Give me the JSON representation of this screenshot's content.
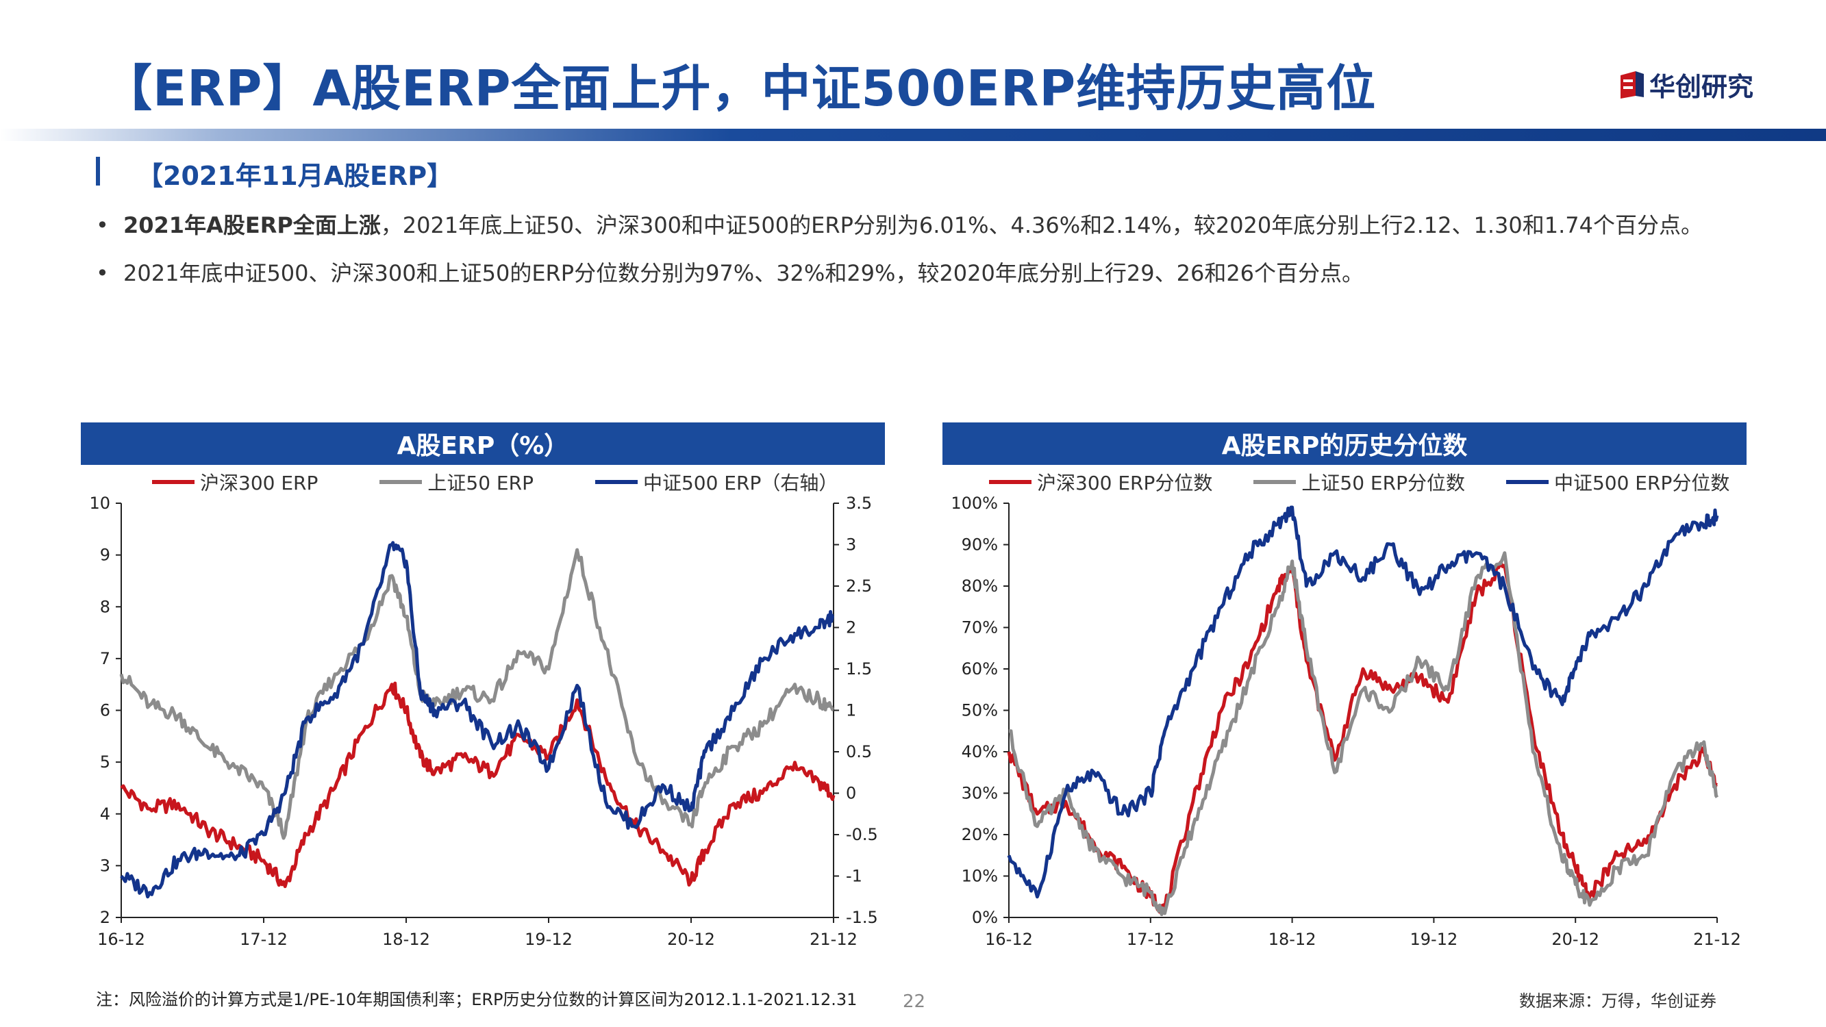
{
  "page": {
    "title": "【ERP】A股ERP全面上升，中证500ERP维持历史高位",
    "logo_text": "华创研究",
    "section_title": "【2021年11月A股ERP】",
    "bullet1_bold": "2021年A股ERP全面上涨",
    "bullet1_rest": "，2021年底上证50、沪深300和中证500的ERP分别为6.01%、4.36%和2.14%，较2020年底分别上行2.12、1.30和1.74个百分点。",
    "bullet2": "2021年底中证500、沪深300和上证50的ERP分位数分别为97%、32%和29%，较2020年底分别上行29、26和26个百分点。",
    "note": "注：风险溢价的计算方式是1/PE-10年期国债利率；ERP历史分位数的计算区间为2012.1.1-2021.12.31",
    "page_number": "22",
    "source": "数据来源：万得，华创证券",
    "colors": {
      "brand": "#1a4b9c",
      "red": "#c8161d",
      "gray": "#8c8c8c",
      "navy": "#13348c"
    }
  },
  "chart_data": [
    {
      "type": "line",
      "title": "A股ERP（%）",
      "x_ticks": [
        "16-12",
        "17-12",
        "18-12",
        "19-12",
        "20-12",
        "21-12"
      ],
      "ylim": [
        2,
        10
      ],
      "y_ticks": [
        "2",
        "3",
        "4",
        "5",
        "6",
        "7",
        "8",
        "9",
        "10"
      ],
      "y2lim": [
        -1.5,
        3.5
      ],
      "y2_ticks": [
        "-1.5",
        "-1",
        "-0.5",
        "0",
        "0.5",
        "1",
        "1.5",
        "2",
        "2.5",
        "3",
        "3.5"
      ],
      "series": [
        {
          "name": "沪深300 ERP",
          "color": "#c8161d",
          "axis": "left",
          "x": [
            0,
            0.2,
            0.4,
            0.6,
            0.8,
            1.0,
            1.15,
            1.3,
            1.5,
            1.7,
            1.9,
            2.0,
            2.1,
            2.2,
            2.4,
            2.6,
            2.8,
            3.0,
            3.2,
            3.4,
            3.6,
            3.8,
            4.0,
            4.1,
            4.3,
            4.5,
            4.7,
            4.9,
            5.0
          ],
          "values": [
            4.5,
            4.1,
            4.2,
            3.7,
            3.4,
            3.1,
            2.6,
            3.6,
            4.5,
            5.6,
            6.5,
            6.0,
            5.1,
            4.8,
            5.1,
            4.8,
            5.5,
            5.1,
            6.2,
            4.7,
            3.8,
            3.3,
            2.7,
            3.3,
            4.2,
            4.4,
            4.9,
            4.6,
            4.36
          ]
        },
        {
          "name": "上证50 ERP",
          "color": "#8c8c8c",
          "axis": "left",
          "x": [
            0,
            0.2,
            0.4,
            0.6,
            0.8,
            1.0,
            1.15,
            1.3,
            1.5,
            1.7,
            1.9,
            2.0,
            2.1,
            2.2,
            2.4,
            2.6,
            2.8,
            3.0,
            3.2,
            3.4,
            3.6,
            3.8,
            4.0,
            4.1,
            4.3,
            4.5,
            4.7,
            4.9,
            5.0
          ],
          "values": [
            6.7,
            6.1,
            5.9,
            5.3,
            4.9,
            4.5,
            3.6,
            5.8,
            6.7,
            7.3,
            8.6,
            7.8,
            6.3,
            6.1,
            6.4,
            6.2,
            7.1,
            6.8,
            9.1,
            7.2,
            5.2,
            4.2,
            3.8,
            4.6,
            5.3,
            5.7,
            6.4,
            6.2,
            6.01
          ]
        },
        {
          "name": "中证500 ERP（右轴）",
          "color": "#13348c",
          "axis": "right",
          "x": [
            0,
            0.2,
            0.4,
            0.6,
            0.8,
            1.0,
            1.15,
            1.3,
            1.5,
            1.7,
            1.9,
            2.0,
            2.1,
            2.2,
            2.4,
            2.6,
            2.8,
            3.0,
            3.2,
            3.4,
            3.6,
            3.8,
            4.0,
            4.1,
            4.3,
            4.5,
            4.7,
            4.9,
            5.0
          ],
          "values": [
            -1.0,
            -1.2,
            -0.8,
            -0.7,
            -0.8,
            -0.5,
            0.0,
            0.9,
            1.2,
            1.8,
            3.0,
            2.8,
            1.2,
            1.0,
            1.1,
            0.6,
            0.8,
            0.3,
            1.3,
            -0.1,
            -0.4,
            0.1,
            -0.2,
            0.5,
            1.0,
            1.6,
            1.9,
            2.0,
            2.14
          ]
        }
      ]
    },
    {
      "type": "line",
      "title": "A股ERP的历史分位数",
      "x_ticks": [
        "16-12",
        "17-12",
        "18-12",
        "19-12",
        "20-12",
        "21-12"
      ],
      "ylim": [
        0,
        100
      ],
      "y_ticks": [
        "0%",
        "10%",
        "20%",
        "30%",
        "40%",
        "50%",
        "60%",
        "70%",
        "80%",
        "90%",
        "100%"
      ],
      "series": [
        {
          "name": "沪深300 ERP分位数",
          "color": "#c8161d",
          "x": [
            0,
            0.2,
            0.4,
            0.6,
            0.8,
            1.0,
            1.1,
            1.3,
            1.5,
            1.7,
            1.9,
            2.0,
            2.1,
            2.3,
            2.5,
            2.7,
            2.9,
            3.1,
            3.3,
            3.5,
            3.7,
            3.9,
            4.0,
            4.1,
            4.3,
            4.5,
            4.7,
            4.9,
            5.0
          ],
          "values": [
            40,
            25,
            28,
            18,
            12,
            5,
            2,
            28,
            50,
            62,
            80,
            84,
            62,
            38,
            60,
            55,
            58,
            52,
            78,
            85,
            45,
            20,
            12,
            5,
            15,
            18,
            32,
            40,
            32
          ]
        },
        {
          "name": "上证50 ERP分位数",
          "color": "#8c8c8c",
          "x": [
            0,
            0.2,
            0.4,
            0.6,
            0.8,
            1.0,
            1.1,
            1.3,
            1.5,
            1.7,
            1.9,
            2.0,
            2.1,
            2.3,
            2.5,
            2.7,
            2.9,
            3.1,
            3.3,
            3.5,
            3.7,
            3.9,
            4.0,
            4.1,
            4.3,
            4.5,
            4.7,
            4.9,
            5.0
          ],
          "values": [
            45,
            22,
            30,
            16,
            10,
            6,
            1,
            22,
            40,
            58,
            75,
            86,
            65,
            35,
            55,
            50,
            62,
            55,
            82,
            88,
            40,
            15,
            8,
            3,
            12,
            15,
            35,
            42,
            29
          ]
        },
        {
          "name": "中证500 ERP分位数",
          "color": "#13348c",
          "x": [
            0,
            0.2,
            0.4,
            0.6,
            0.8,
            1.0,
            1.1,
            1.3,
            1.5,
            1.7,
            1.9,
            2.0,
            2.1,
            2.3,
            2.5,
            2.7,
            2.9,
            3.1,
            3.3,
            3.5,
            3.7,
            3.9,
            4.0,
            4.1,
            4.3,
            4.5,
            4.7,
            4.9,
            5.0
          ],
          "values": [
            15,
            5,
            30,
            35,
            25,
            30,
            45,
            60,
            75,
            88,
            95,
            99,
            80,
            88,
            82,
            90,
            78,
            85,
            88,
            80,
            60,
            52,
            60,
            68,
            72,
            80,
            92,
            95,
            97
          ]
        }
      ]
    }
  ]
}
